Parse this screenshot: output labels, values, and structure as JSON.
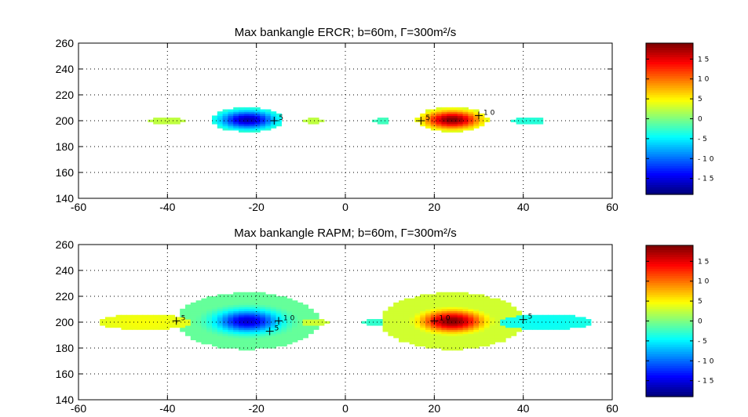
{
  "chart_data": [
    {
      "type": "heatmap",
      "title": "Max bankangle ERCR; b=60m, Γ=300m²/s",
      "xlim": [
        -60,
        60
      ],
      "ylim": [
        140,
        260
      ],
      "xticks": [
        -60,
        -40,
        -20,
        0,
        20,
        40,
        60
      ],
      "yticks": [
        140,
        160,
        180,
        200,
        220,
        240,
        260
      ],
      "grid": true,
      "colorbar": {
        "range": [
          -19,
          19
        ],
        "ticks": [
          15,
          10,
          5,
          0,
          -5,
          -10,
          -15
        ],
        "tick_labels": [
          "1 5",
          "1 0",
          "5",
          "0",
          "- 5",
          "- 1 0",
          "- 1 5"
        ]
      },
      "blobs": [
        {
          "x0": -22,
          "y0": 201,
          "x1": 0,
          "y1": 201,
          "sx": 4.5,
          "sy": 5,
          "amp": -17,
          "rx": 8,
          "ry": 9.5
        },
        {
          "x0": 24,
          "y0": 201,
          "x1": 0,
          "y1": 201,
          "sx": 4.5,
          "sy": 5,
          "amp": 19,
          "rx": 8,
          "ry": 9.5
        },
        {
          "x0": -40,
          "y0": 200,
          "x1": -40,
          "y1": 200,
          "sx": 4,
          "sy": 2.5,
          "amp": 2.5,
          "rx": 4,
          "ry": 2.3
        },
        {
          "x0": -7,
          "y0": 200,
          "x1": -7,
          "y1": 200,
          "sx": 2,
          "sy": 2,
          "amp": 2.5,
          "rx": 2,
          "ry": 2
        },
        {
          "x0": 8,
          "y0": 200,
          "x1": 8,
          "y1": 200,
          "sx": 2,
          "sy": 2,
          "amp": -2.5,
          "rx": 2,
          "ry": 2
        },
        {
          "x0": 41,
          "y0": 200,
          "x1": 41,
          "y1": 200,
          "sx": 4,
          "sy": 2.5,
          "amp": -3.5,
          "rx": 4,
          "ry": 2.3
        }
      ],
      "contour_labels": [
        {
          "text": "5",
          "x": -16,
          "y": 200
        },
        {
          "text": "5",
          "x": 17,
          "y": 200
        },
        {
          "text": "1 0",
          "x": 30,
          "y": 204
        }
      ]
    },
    {
      "type": "heatmap",
      "title": "Max bankangle RAPM; b=60m, Γ=300m²/s",
      "xlim": [
        -60,
        60
      ],
      "ylim": [
        140,
        260
      ],
      "xticks": [
        -60,
        -40,
        -20,
        0,
        20,
        40,
        60
      ],
      "yticks": [
        140,
        160,
        180,
        200,
        220,
        240,
        260
      ],
      "grid": true,
      "colorbar": {
        "range": [
          -19,
          19
        ],
        "ticks": [
          15,
          10,
          5,
          0,
          -5,
          -10,
          -15
        ],
        "tick_labels": [
          "1 5",
          "1 0",
          "5",
          "0",
          "- 5",
          "- 1 0",
          "- 1 5"
        ]
      },
      "blobs": [
        {
          "x0": -22,
          "y0": 201,
          "x1": 0,
          "y1": 201,
          "sx": 5,
          "sy": 6,
          "amp": -16,
          "rx": 16,
          "ry": 22
        },
        {
          "x0": 24,
          "y0": 201,
          "x1": 0,
          "y1": 201,
          "sx": 5,
          "sy": 6,
          "amp": 19,
          "rx": 16,
          "ry": 22
        },
        {
          "x0": -45,
          "y0": 200,
          "x1": -45,
          "y1": 200,
          "sx": 7,
          "sy": 6,
          "amp": 4.5,
          "rx": 10,
          "ry": 6
        },
        {
          "x0": -7,
          "y0": 200,
          "x1": -7,
          "y1": 200,
          "sx": 3,
          "sy": 3,
          "amp": 3,
          "rx": 3,
          "ry": 3
        },
        {
          "x0": 7,
          "y0": 200,
          "x1": 7,
          "y1": 200,
          "sx": 3,
          "sy": 3,
          "amp": -3,
          "rx": 3,
          "ry": 3
        },
        {
          "x0": 45,
          "y0": 200,
          "x1": 45,
          "y1": 200,
          "sx": 7,
          "sy": 6,
          "amp": -4.5,
          "rx": 10,
          "ry": 6
        }
      ],
      "contour_labels": [
        {
          "text": "5",
          "x": -38,
          "y": 201
        },
        {
          "text": "1 0",
          "x": -15,
          "y": 201
        },
        {
          "text": "5",
          "x": -17,
          "y": 193
        },
        {
          "text": "1 0",
          "x": 20,
          "y": 201
        },
        {
          "text": "5",
          "x": 40,
          "y": 202
        }
      ]
    }
  ]
}
